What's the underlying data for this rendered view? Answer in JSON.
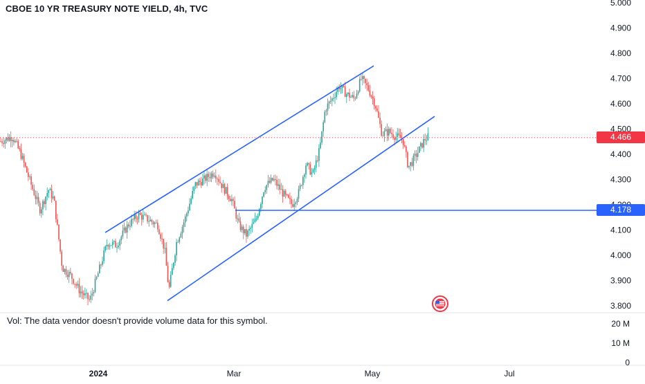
{
  "header": {
    "title": "CBOE 10 YR TREASURY NOTE YIELD, 4h, TVC"
  },
  "volume_pane": {
    "message": "Vol: The data vendor doesn't provide volume data for this symbol.",
    "axis_labels": [
      "20 M",
      "10 M",
      "0"
    ]
  },
  "price_tags": {
    "last": "4.466",
    "level": "4.178"
  },
  "colors": {
    "up": "#26a69a",
    "down": "#ef5350",
    "trendline": "#2962ff",
    "last_price": "#f23645",
    "level": "#2962ff"
  },
  "icons": {
    "flag": "us-flag-icon"
  },
  "chart_data": {
    "type": "candlestick",
    "title": "CBOE 10 YR TREASURY NOTE YIELD, 4h, TVC",
    "y_ticks": [
      "5.000",
      "4.900",
      "4.800",
      "4.700",
      "4.600",
      "4.500",
      "4.400",
      "4.300",
      "4.200",
      "4.100",
      "4.000",
      "3.900",
      "3.800"
    ],
    "x_ticks": [
      "2024",
      "Mar",
      "May",
      "Jul"
    ],
    "ylim": [
      3.75,
      5.0
    ],
    "grid": false,
    "last_price": 4.466,
    "horizontal_level": 4.178,
    "path_points": [
      [
        0,
        4.45
      ],
      [
        18,
        4.47
      ],
      [
        30,
        4.4
      ],
      [
        45,
        4.28
      ],
      [
        58,
        4.18
      ],
      [
        70,
        4.26
      ],
      [
        78,
        4.22
      ],
      [
        90,
        3.95
      ],
      [
        102,
        3.92
      ],
      [
        115,
        3.86
      ],
      [
        130,
        3.82
      ],
      [
        142,
        3.93
      ],
      [
        155,
        4.05
      ],
      [
        168,
        4.04
      ],
      [
        185,
        4.12
      ],
      [
        200,
        4.16
      ],
      [
        215,
        4.14
      ],
      [
        228,
        4.12
      ],
      [
        238,
        4.02
      ],
      [
        244,
        3.86
      ],
      [
        255,
        4.05
      ],
      [
        268,
        4.15
      ],
      [
        282,
        4.28
      ],
      [
        295,
        4.3
      ],
      [
        310,
        4.33
      ],
      [
        322,
        4.27
      ],
      [
        335,
        4.22
      ],
      [
        345,
        4.12
      ],
      [
        356,
        4.08
      ],
      [
        370,
        4.14
      ],
      [
        382,
        4.27
      ],
      [
        395,
        4.3
      ],
      [
        410,
        4.24
      ],
      [
        422,
        4.2
      ],
      [
        432,
        4.25
      ],
      [
        442,
        4.36
      ],
      [
        452,
        4.32
      ],
      [
        462,
        4.42
      ],
      [
        470,
        4.58
      ],
      [
        480,
        4.62
      ],
      [
        490,
        4.67
      ],
      [
        500,
        4.64
      ],
      [
        512,
        4.62
      ],
      [
        522,
        4.7
      ],
      [
        532,
        4.66
      ],
      [
        542,
        4.6
      ],
      [
        552,
        4.48
      ],
      [
        562,
        4.49
      ],
      [
        572,
        4.47
      ],
      [
        582,
        4.46
      ],
      [
        590,
        4.35
      ],
      [
        598,
        4.38
      ],
      [
        606,
        4.42
      ],
      [
        614,
        4.46
      ],
      [
        620,
        4.47
      ]
    ],
    "trendlines": [
      {
        "x1": 152,
        "y1": 4.09,
        "x2": 540,
        "y2": 4.75
      },
      {
        "x1": 242,
        "y1": 3.82,
        "x2": 628,
        "y2": 4.55
      }
    ]
  }
}
